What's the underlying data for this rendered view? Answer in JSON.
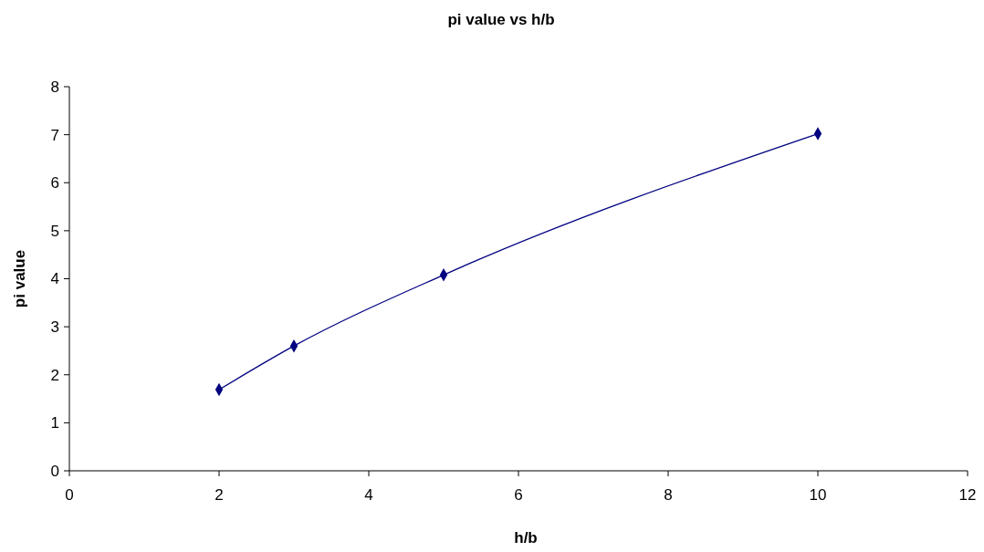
{
  "chart_data": {
    "type": "line",
    "title": "pi value vs h/b",
    "xlabel": "h/b",
    "ylabel": "pi value",
    "x": [
      2,
      3,
      5,
      10
    ],
    "series": [
      {
        "color": "#000080",
        "values": [
          1.69,
          2.6,
          4.08,
          7.02
        ]
      }
    ],
    "xlim": [
      0,
      12
    ],
    "xticks": [
      0,
      2,
      4,
      6,
      8,
      10,
      12
    ],
    "ylim": [
      0,
      8
    ],
    "yticks": [
      0,
      1,
      2,
      3,
      4,
      5,
      6,
      7,
      8
    ],
    "marker": "diamond",
    "grid": false
  }
}
